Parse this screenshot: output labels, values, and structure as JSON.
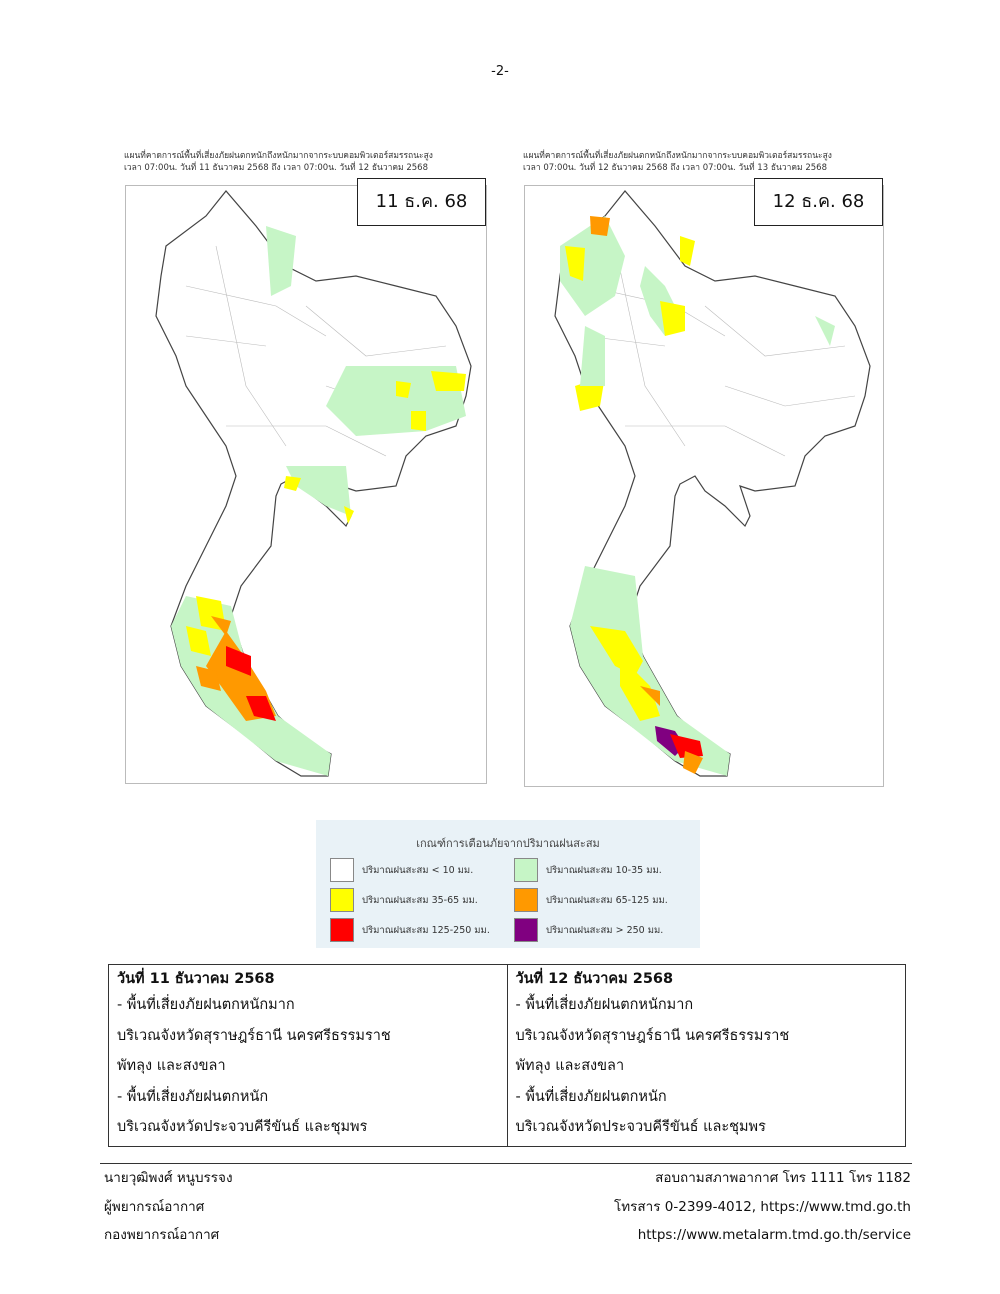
{
  "header": {
    "page_number": "-2-"
  },
  "maps": [
    {
      "caption_line1": "แผนที่คาดการณ์พื้นที่เสี่ยงภัยฝนตกหนักถึงหนักมากจากระบบคอมพิวเตอร์สมรรถนะสูง",
      "caption_line2": "เวลา 07:00น. วันที่ 11 ธันวาคม 2568 ถึง เวลา 07:00น. วันที่ 12 ธันวาคม 2568",
      "date_label": "11 ธ.ค. 68"
    },
    {
      "caption_line1": "แผนที่คาดการณ์พื้นที่เสี่ยงภัยฝนตกหนักถึงหนักมากจากระบบคอมพิวเตอร์สมรรถนะสูง",
      "caption_line2": "เวลา 07:00น. วันที่ 12 ธันวาคม 2568 ถึง เวลา 07:00น. วันที่ 13 ธันวาคม 2568",
      "date_label": "12 ธ.ค. 68"
    }
  ],
  "legend": {
    "title": "เกณฑ์การเตือนภัยจากปริมาณฝนสะสม",
    "items": [
      {
        "label": "ปริมาณฝนสะสม < 10 มม.",
        "color": "#ffffff"
      },
      {
        "label": "ปริมาณฝนสะสม 10-35 มม.",
        "color": "#c6f5c6"
      },
      {
        "label": "ปริมาณฝนสะสม 35-65 มม.",
        "color": "#ffff00"
      },
      {
        "label": "ปริมาณฝนสะสม 65-125 มม.",
        "color": "#ff9900"
      },
      {
        "label": "ปริมาณฝนสะสม 125-250 มม.",
        "color": "#ff0000"
      },
      {
        "label": "ปริมาณฝนสะสม > 250 มม.",
        "color": "#800080"
      }
    ]
  },
  "table": {
    "columns": [
      {
        "heading": "วันที่ 11 ธันวาคม 2568",
        "lines": [
          "- พื้นที่เสี่ยงภัยฝนตกหนักมาก",
          "บริเวณจังหวัดสุราษฎร์ธานี นครศรีธรรมราช",
          "พัทลุง และสงขลา",
          "- พื้นที่เสี่ยงภัยฝนตกหนัก",
          "บริเวณจังหวัดประจวบคีรีขันธ์ และชุมพร"
        ]
      },
      {
        "heading": "วันที่ 12 ธันวาคม 2568",
        "lines": [
          "- พื้นที่เสี่ยงภัยฝนตกหนักมาก",
          "บริเวณจังหวัดสุราษฎร์ธานี นครศรีธรรมราช",
          "พัทลุง และสงขลา",
          "- พื้นที่เสี่ยงภัยฝนตกหนัก",
          "บริเวณจังหวัดประจวบคีรีขันธ์ และชุมพร"
        ]
      }
    ]
  },
  "footer": {
    "left": [
      "นายวุฒิพงศ์  หนูบรรจง",
      "ผู้พยากรณ์อากาศ",
      "กองพยากรณ์อากาศ"
    ],
    "right": [
      "สอบถามสภาพอากาศ โทร 1111 โทร 1182",
      "โทรสาร 0-2399-4012, https://www.tmd.go.th",
      "https://www.metalarm.tmd.go.th/service"
    ]
  }
}
